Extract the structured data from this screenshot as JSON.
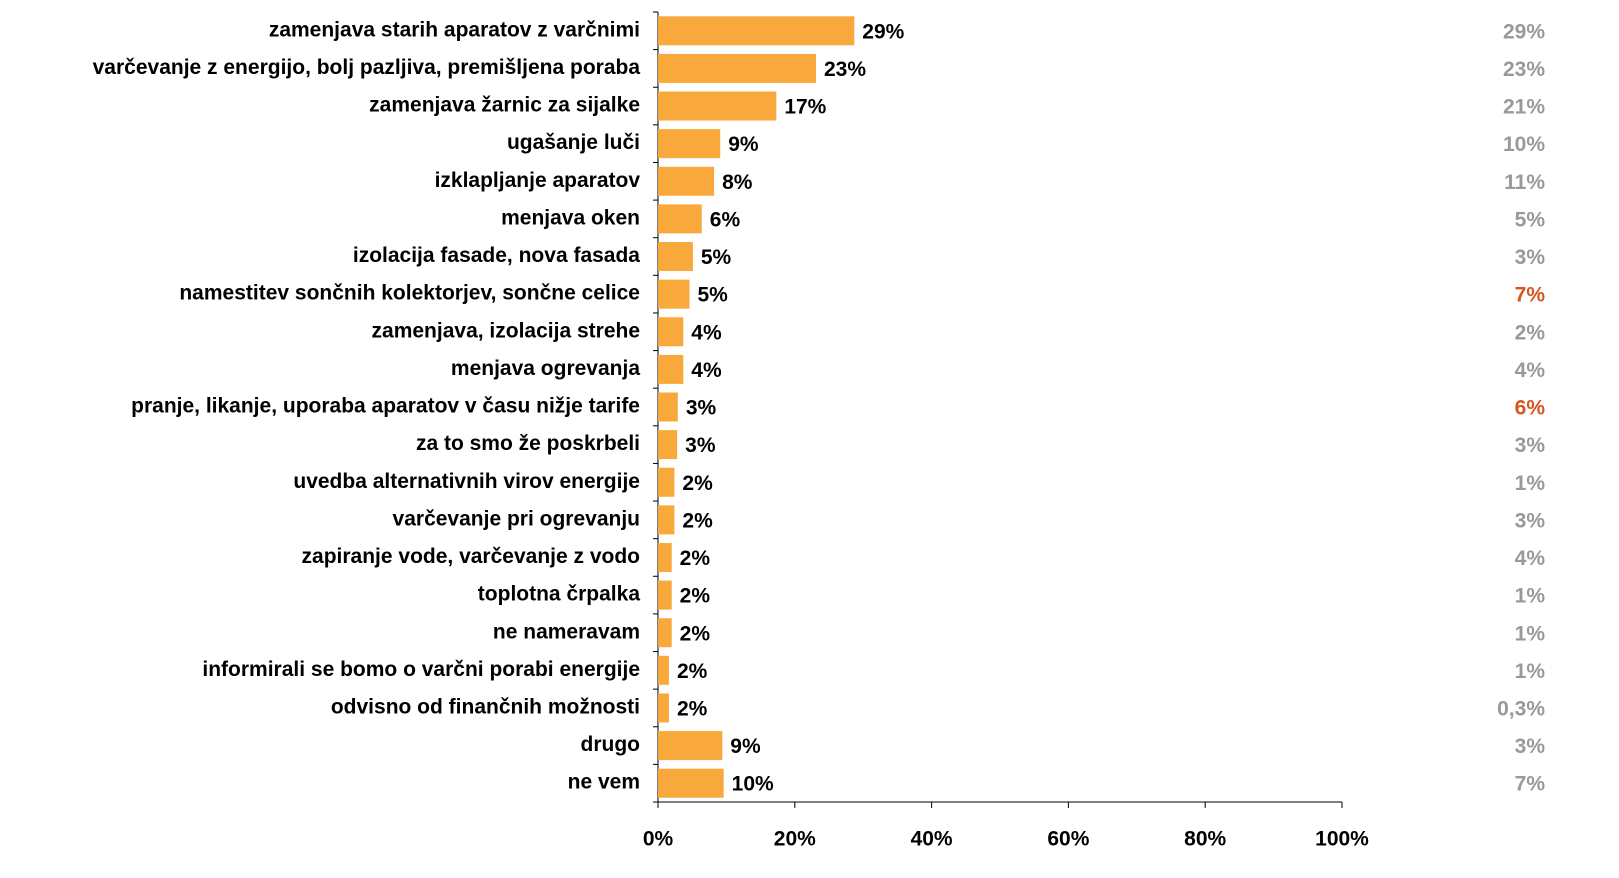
{
  "chart_data": {
    "type": "bar",
    "categories": [
      "zamenjava starih aparatov z varčnimi",
      "varčevanje z energijo, bolj pazljiva, premišljena poraba",
      "zamenjava žarnic za sijalke",
      "ugašanje luči",
      "izklapljanje aparatov",
      "menjava oken",
      "izolacija fasade, nova fasada",
      "namestitev sončnih kolektorjev, sončne celice",
      "zamenjava, izolacija strehe",
      "menjava ogrevanja",
      "pranje, likanje, uporaba aparatov v času nižje tarife",
      "za to smo že poskrbeli",
      "uvedba alternativnih virov energije",
      "varčevanje pri ogrevanju",
      "zapiranje vode, varčevanje z vodo",
      "toplotna črpalka",
      "ne nameravam",
      "informirali se bomo o varčni porabi energije",
      "odvisno od finančnih možnosti",
      "drugo",
      "ne vem"
    ],
    "values": [
      28.7,
      23.1,
      17.3,
      9.1,
      8.2,
      6.4,
      5.1,
      4.6,
      3.7,
      3.7,
      2.9,
      2.8,
      2.4,
      2.4,
      2.0,
      2.0,
      2.0,
      1.6,
      1.6,
      9.4,
      9.6
    ],
    "value_labels": [
      "29%",
      "23%",
      "17%",
      "9%",
      "8%",
      "6%",
      "5%",
      "5%",
      "4%",
      "4%",
      "3%",
      "3%",
      "2%",
      "2%",
      "2%",
      "2%",
      "2%",
      "2%",
      "2%",
      "9%",
      "10%"
    ],
    "color": "#f9a83b",
    "secondary_values": [
      29,
      23,
      21,
      10,
      11,
      5,
      3,
      7,
      2,
      4,
      6,
      3,
      1,
      3,
      4,
      1,
      1,
      1,
      0.3,
      3,
      7
    ],
    "secondary_value_labels": [
      "29%",
      "23%",
      "21%",
      "10%",
      "11%",
      "5%",
      "3%",
      "7%",
      "2%",
      "4%",
      "6%",
      "3%",
      "1%",
      "3%",
      "4%",
      "1%",
      "1%",
      "1%",
      "0,3%",
      "3%",
      "7%"
    ],
    "secondary_colors": [
      "#999999",
      "#999999",
      "#999999",
      "#999999",
      "#999999",
      "#999999",
      "#999999",
      "#d9541e",
      "#999999",
      "#999999",
      "#d9541e",
      "#999999",
      "#999999",
      "#999999",
      "#999999",
      "#999999",
      "#999999",
      "#999999",
      "#999999",
      "#999999",
      "#999999"
    ],
    "xlim": [
      0,
      100
    ],
    "xticks": [
      {
        "value": 0,
        "label": "0%"
      },
      {
        "value": 20,
        "label": "20%"
      },
      {
        "value": 40,
        "label": "40%"
      },
      {
        "value": 60,
        "label": "60%"
      },
      {
        "value": 80,
        "label": "80%"
      },
      {
        "value": 100,
        "label": "100%"
      }
    ]
  }
}
